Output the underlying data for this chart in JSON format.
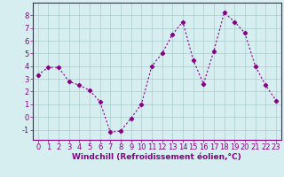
{
  "x": [
    0,
    1,
    2,
    3,
    4,
    5,
    6,
    7,
    8,
    9,
    10,
    11,
    12,
    13,
    14,
    15,
    16,
    17,
    18,
    19,
    20,
    21,
    22,
    23
  ],
  "y": [
    3.3,
    3.9,
    3.9,
    2.8,
    2.5,
    2.1,
    1.2,
    -1.2,
    -1.1,
    -0.1,
    1.0,
    4.0,
    5.0,
    6.5,
    7.5,
    4.5,
    2.6,
    5.2,
    8.2,
    7.5,
    6.6,
    4.0,
    2.5,
    1.3
  ],
  "line_color": "#880088",
  "marker": "D",
  "markersize": 2.2,
  "linewidth": 0.8,
  "xlabel": "Windchill (Refroidissement éolien,°C)",
  "xlabel_fontsize": 6.5,
  "xlim": [
    -0.5,
    23.5
  ],
  "ylim": [
    -1.8,
    9.0
  ],
  "yticks": [
    -1,
    0,
    1,
    2,
    3,
    4,
    5,
    6,
    7,
    8
  ],
  "xticks": [
    0,
    1,
    2,
    3,
    4,
    5,
    6,
    7,
    8,
    9,
    10,
    11,
    12,
    13,
    14,
    15,
    16,
    17,
    18,
    19,
    20,
    21,
    22,
    23
  ],
  "grid_color": "#aacccc",
  "background_color": "#d6eeef",
  "tick_fontsize": 6.0,
  "xlabel_color": "#880088",
  "axis_color": "#880088",
  "spine_color": "#880088"
}
